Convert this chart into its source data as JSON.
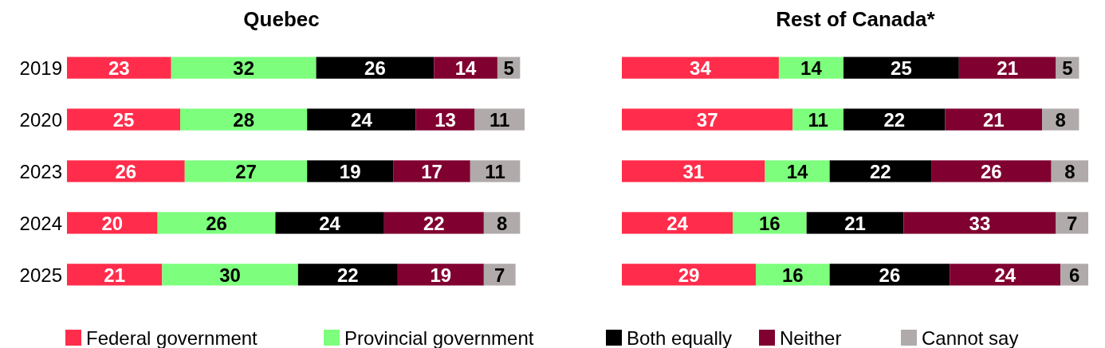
{
  "chart_data": [
    {
      "type": "bar",
      "title": "Quebec",
      "orientation": "horizontal",
      "stacked": true,
      "data_labels": true,
      "tick_labels": "y",
      "legend": "bottom",
      "categories": [
        "2019",
        "2020",
        "2023",
        "2024",
        "2025"
      ],
      "series": [
        {
          "name": "Federal government",
          "color": "#ff2d4b",
          "values": [
            23,
            25,
            26,
            20,
            21
          ]
        },
        {
          "name": "Provincial government",
          "color": "#7dff7d",
          "values": [
            32,
            28,
            27,
            26,
            30
          ]
        },
        {
          "name": "Both equally",
          "color": "#000000",
          "values": [
            26,
            24,
            19,
            24,
            22
          ]
        },
        {
          "name": "Neither",
          "color": "#800030",
          "values": [
            14,
            13,
            17,
            22,
            19
          ]
        },
        {
          "name": "Cannot say",
          "color": "#b0aaaa",
          "values": [
            5,
            11,
            11,
            8,
            7
          ]
        }
      ]
    },
    {
      "type": "bar",
      "title": "Rest of Canada*",
      "orientation": "horizontal",
      "stacked": true,
      "data_labels": true,
      "tick_labels": false,
      "categories": [
        null,
        null,
        null,
        null,
        null
      ],
      "series": [
        {
          "color": "#ff2d4b",
          "values": [
            34,
            37,
            31,
            24,
            29
          ]
        },
        {
          "color": "#7dff7d",
          "values": [
            14,
            11,
            14,
            16,
            16
          ]
        },
        {
          "color": "#000000",
          "values": [
            25,
            22,
            22,
            21,
            26
          ]
        },
        {
          "color": "#800030",
          "values": [
            21,
            21,
            26,
            33,
            24
          ]
        },
        {
          "color": "#b0aaaa",
          "values": [
            5,
            8,
            8,
            7,
            6
          ]
        }
      ]
    }
  ]
}
